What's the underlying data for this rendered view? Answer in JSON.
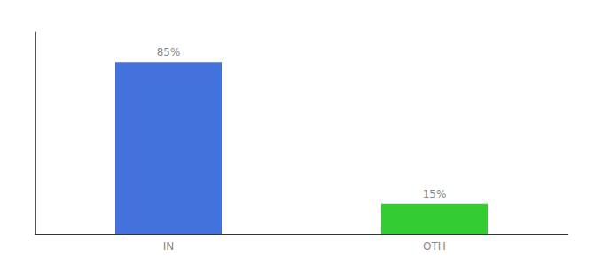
{
  "chart_data": {
    "type": "bar",
    "categories": [
      "IN",
      "OTH"
    ],
    "values": [
      85,
      15
    ],
    "value_labels": [
      "85%",
      "15%"
    ],
    "colors": [
      "#4472DD",
      "#33CC33"
    ],
    "ylim": [
      0,
      100
    ],
    "data_labels": true,
    "tick_labels": "x",
    "grid": false
  }
}
